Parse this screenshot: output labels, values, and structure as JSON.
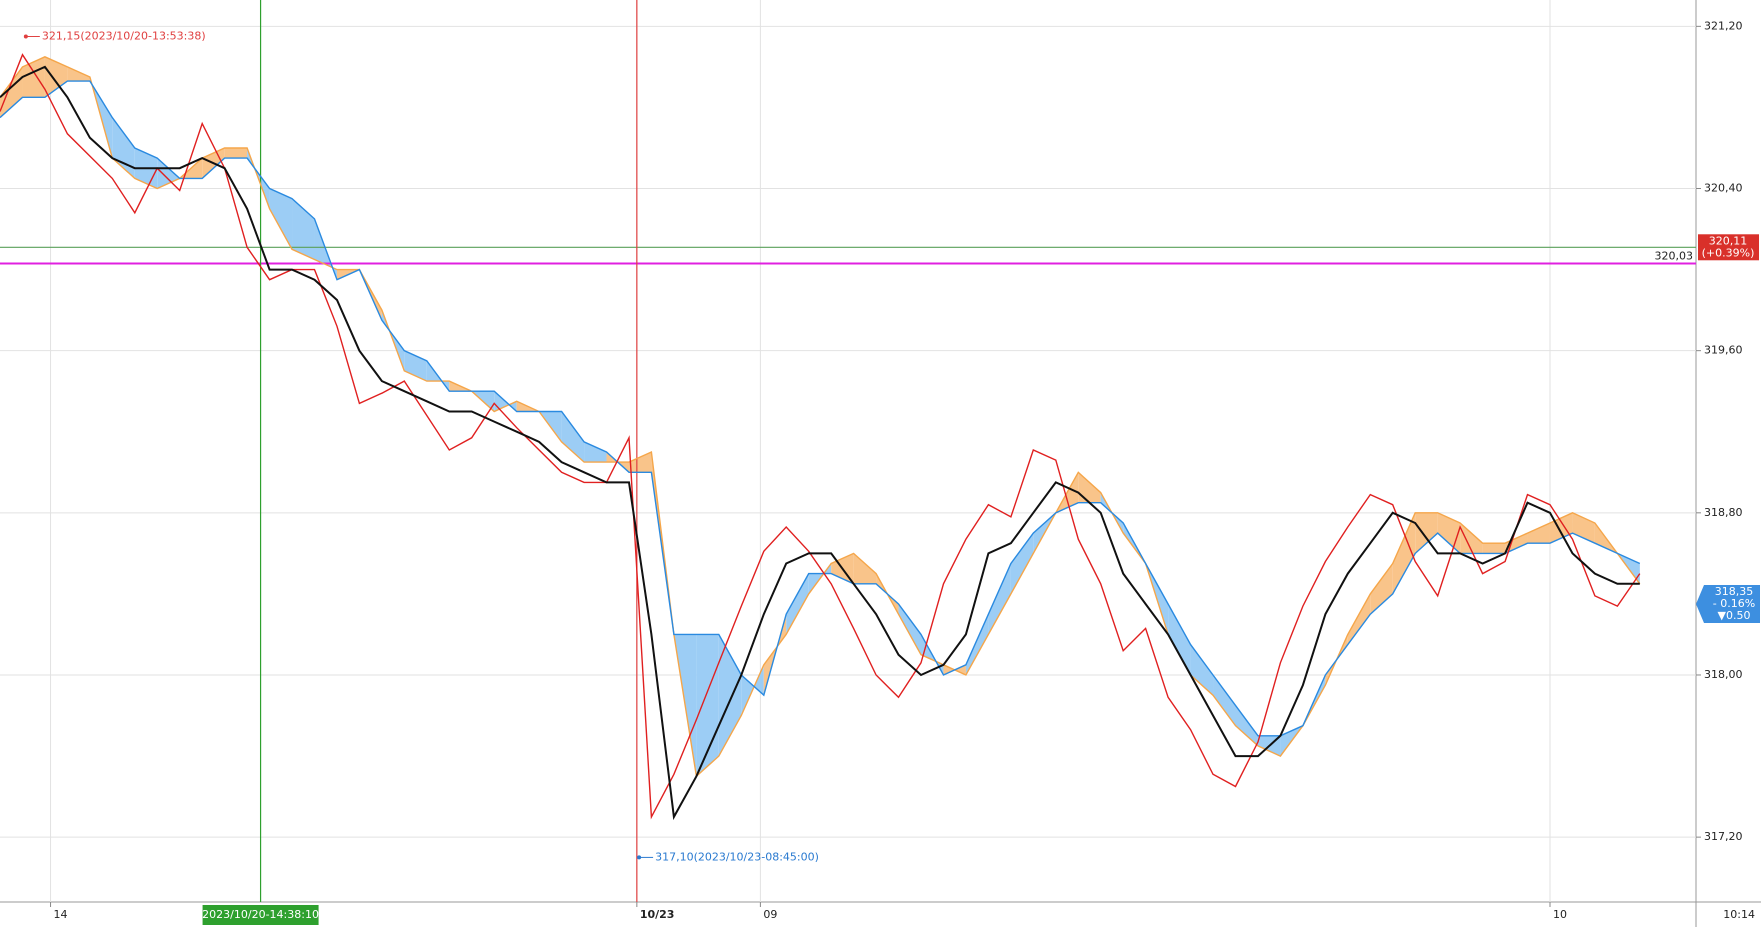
{
  "chart_data": {
    "type": "line",
    "x": [
      0,
      2,
      4,
      6,
      8,
      10,
      12,
      14,
      16,
      18,
      20,
      22,
      24,
      26,
      28,
      30,
      32,
      34,
      36,
      38,
      40,
      42,
      44,
      46,
      48,
      50,
      52,
      54,
      56,
      58,
      60,
      62,
      64,
      66,
      68,
      70,
      72,
      74,
      76,
      78,
      80,
      82,
      84,
      86,
      88,
      90,
      92,
      94,
      96,
      98,
      100,
      102,
      104,
      106,
      108,
      110,
      112,
      114,
      116,
      118,
      120,
      122,
      124,
      126,
      128,
      130,
      132,
      134,
      136,
      138,
      140,
      142,
      144,
      146
    ],
    "xlim": [
      0,
      151
    ],
    "xticks": [
      {
        "value": 4.5,
        "label": "14"
      },
      {
        "value": 56.7,
        "label": "10/23"
      },
      {
        "value": 67.7,
        "label": "09"
      },
      {
        "value": 138,
        "label": "10"
      }
    ],
    "ylim": [
      316.88,
      321.33
    ],
    "yticks": [
      {
        "value": 317.2,
        "label": "317,20"
      },
      {
        "value": 318.0,
        "label": "318,00"
      },
      {
        "value": 318.8,
        "label": "318,80"
      },
      {
        "value": 319.6,
        "label": "319,60"
      },
      {
        "value": 320.4,
        "label": "320,40"
      },
      {
        "value": 321.2,
        "label": "321,20"
      }
    ],
    "grid": true,
    "series": [
      {
        "name": "Span A",
        "color": "#f5a64a",
        "values": [
          320.85,
          321.0,
          321.05,
          321.0,
          320.95,
          320.55,
          320.45,
          320.4,
          320.45,
          320.55,
          320.6,
          320.6,
          320.3,
          320.1,
          320.05,
          320.0,
          320.0,
          319.8,
          319.5,
          319.45,
          319.45,
          319.4,
          319.3,
          319.35,
          319.3,
          319.15,
          319.05,
          319.05,
          319.05,
          319.1,
          318.2,
          317.5,
          317.6,
          317.8,
          318.05,
          318.2,
          318.4,
          318.55,
          318.6,
          318.5,
          318.3,
          318.1,
          318.05,
          318.0,
          318.2,
          318.4,
          318.6,
          318.8,
          319.0,
          318.9,
          318.7,
          318.55,
          318.2,
          318.0,
          317.9,
          317.75,
          317.65,
          317.6,
          317.75,
          317.95,
          318.2,
          318.4,
          318.55,
          318.8,
          318.8,
          318.75,
          318.65,
          318.65,
          318.7,
          318.75,
          318.8,
          318.75,
          318.6,
          318.45
        ]
      },
      {
        "name": "Span B",
        "color": "#2a8ae0",
        "values": [
          320.75,
          320.85,
          320.85,
          320.93,
          320.93,
          320.75,
          320.6,
          320.55,
          320.45,
          320.45,
          320.55,
          320.55,
          320.4,
          320.35,
          320.25,
          319.95,
          320.0,
          319.75,
          319.6,
          319.55,
          319.4,
          319.4,
          319.4,
          319.3,
          319.3,
          319.3,
          319.15,
          319.1,
          319.0,
          319.0,
          318.2,
          318.2,
          318.2,
          318.0,
          317.9,
          318.3,
          318.5,
          318.5,
          318.45,
          318.45,
          318.35,
          318.2,
          318.0,
          318.05,
          318.3,
          318.55,
          318.7,
          318.8,
          318.85,
          318.85,
          318.75,
          318.55,
          318.35,
          318.15,
          318.0,
          317.85,
          317.7,
          317.7,
          317.75,
          318.0,
          318.15,
          318.3,
          318.4,
          318.6,
          318.7,
          318.6,
          318.6,
          318.6,
          318.65,
          318.65,
          318.7,
          318.65,
          318.6,
          318.55
        ]
      },
      {
        "name": "Close",
        "color": "#e02020",
        "values": [
          320.78,
          321.06,
          320.89,
          320.67,
          320.56,
          320.45,
          320.28,
          320.5,
          320.39,
          320.72,
          320.5,
          320.11,
          319.95,
          320.0,
          320.0,
          319.72,
          319.34,
          319.39,
          319.45,
          319.28,
          319.11,
          319.17,
          319.34,
          319.22,
          319.11,
          319.0,
          318.95,
          318.95,
          319.17,
          317.3,
          317.51,
          317.78,
          318.06,
          318.34,
          318.61,
          318.73,
          318.61,
          318.45,
          318.23,
          318.0,
          317.89,
          318.06,
          318.45,
          318.67,
          318.84,
          318.78,
          319.11,
          319.06,
          318.67,
          318.45,
          318.12,
          318.23,
          317.89,
          317.73,
          317.51,
          317.45,
          317.67,
          318.06,
          318.34,
          318.56,
          318.73,
          318.89,
          318.84,
          318.56,
          318.39,
          318.73,
          318.5,
          318.56,
          318.89,
          318.84,
          318.67,
          318.39,
          318.34,
          318.5
        ]
      },
      {
        "name": "Base",
        "color": "#111111",
        "values": [
          320.85,
          320.95,
          321.0,
          320.85,
          320.65,
          320.55,
          320.5,
          320.5,
          320.5,
          320.55,
          320.5,
          320.3,
          320.0,
          320.0,
          319.95,
          319.85,
          319.6,
          319.45,
          319.4,
          319.35,
          319.3,
          319.3,
          319.25,
          319.2,
          319.15,
          319.05,
          319.0,
          318.95,
          318.95,
          318.2,
          317.3,
          317.5,
          317.75,
          318.0,
          318.3,
          318.55,
          318.6,
          318.6,
          318.45,
          318.3,
          318.1,
          318.0,
          318.05,
          318.2,
          318.6,
          318.65,
          318.8,
          318.95,
          318.9,
          318.8,
          318.5,
          318.35,
          318.2,
          318.0,
          317.8,
          317.6,
          317.6,
          317.7,
          317.95,
          318.3,
          318.5,
          318.65,
          318.8,
          318.75,
          318.6,
          318.6,
          318.55,
          318.6,
          318.85,
          318.8,
          318.6,
          318.5,
          318.45,
          318.45
        ]
      }
    ],
    "cloud_colors": [
      "#f9c48a",
      "#9ccdf5"
    ],
    "hlines": [
      {
        "value": 320.11,
        "color": "#5aa05a",
        "labels": [
          "320,11",
          "(+0.39%)"
        ],
        "box": "#d9302a"
      },
      {
        "value": 320.03,
        "color": "#e020e0",
        "labels": [
          "320,03"
        ]
      }
    ],
    "current": {
      "value": 318.35,
      "labels": [
        "318,35",
        "- 0.16%",
        "▼0.50"
      ],
      "color": "#3d8fe0"
    },
    "vlines": [
      {
        "value": 23.2,
        "color": "#2ea02e",
        "label": "2023/10/20-14:38:10"
      },
      {
        "value": 56.7,
        "color": "#e04040"
      }
    ],
    "annotations": [
      {
        "x": 2.3,
        "y": 321.15,
        "text": "321,15(2023/10/20-13:53:38)",
        "color": "#e04040"
      },
      {
        "x": 56.9,
        "y": 317.1,
        "text": "317,10(2023/10/23-08:45:00)",
        "color": "#2a7ad0"
      }
    ],
    "corner_label": "10:14"
  }
}
